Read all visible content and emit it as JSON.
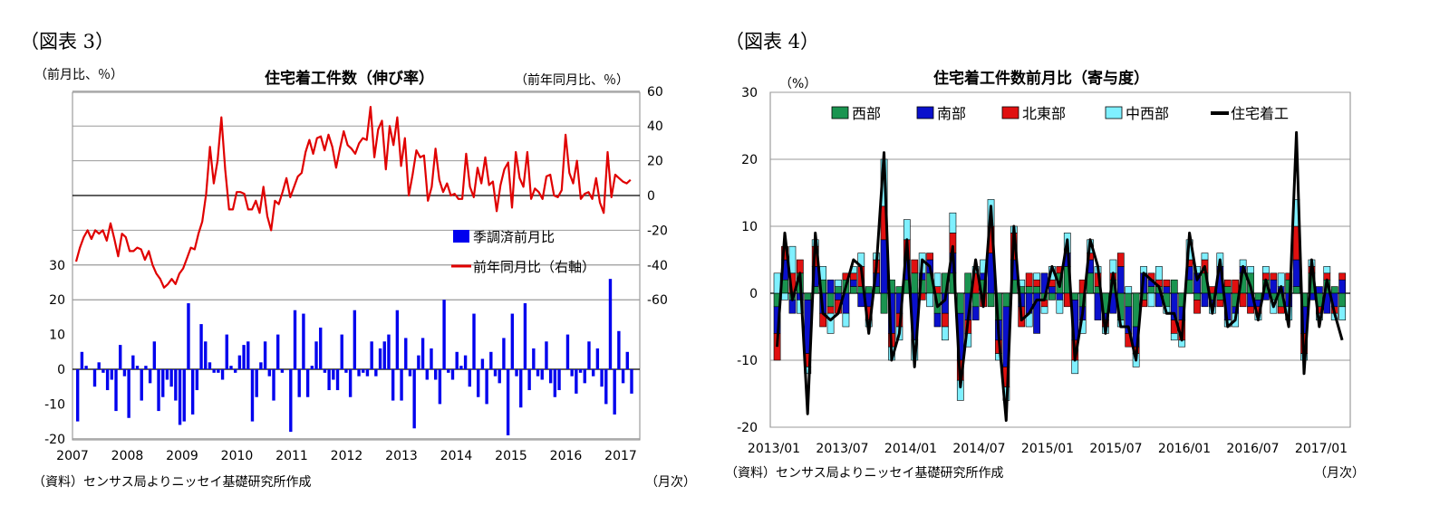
{
  "figures": [
    {
      "label": "（図表 3）",
      "title": "住宅着工件数（伸び率）",
      "left_unit": "（前月比、％）",
      "right_unit": "（前年同月比、％）",
      "source": "（資料）センサス局よりニッセイ基礎研究所作成",
      "x_unit": "（月次）"
    },
    {
      "label": "（図表 4）",
      "title": "住宅着工件数前月比（寄与度）",
      "unit": "（%）",
      "source": "（資料）センサス局よりニッセイ基礎研究所作成",
      "x_unit": "（月次）"
    }
  ],
  "chart_data": [
    {
      "type": "bar+line",
      "x_tick_labels": [
        "2007",
        "2008",
        "2009",
        "2010",
        "2011",
        "2012",
        "2013",
        "2014",
        "2015",
        "2016",
        "2017"
      ],
      "left_axis": {
        "ticks": [
          30,
          20,
          10,
          0,
          -10,
          -20
        ]
      },
      "right_axis": {
        "ticks": [
          60,
          40,
          20,
          0,
          -20,
          -40,
          -60
        ]
      },
      "legend": [
        "季調済前月比",
        "前年同月比（右軸）"
      ],
      "colors": {
        "bar": "#0000ee",
        "line": "#e00000"
      },
      "series": [
        {
          "name": "季調済前月比",
          "axis": "left",
          "values": [
            -15,
            5,
            1,
            0,
            -5,
            2,
            -1,
            -6,
            -3,
            -12,
            7,
            -2,
            -14,
            4,
            1,
            -9,
            1,
            -4,
            8,
            -12,
            -8,
            -3,
            -5,
            -9,
            -16,
            -15,
            19,
            -13,
            -6,
            13,
            8,
            2,
            -1,
            -1,
            -3,
            10,
            1,
            -1,
            4,
            7,
            8,
            -15,
            -8,
            2,
            8,
            -2,
            -9,
            10,
            -1,
            0,
            -18,
            17,
            -8,
            16,
            -8,
            1,
            8,
            12,
            -1,
            -6,
            -3,
            -6,
            10,
            -1,
            -8,
            17,
            -2,
            -1,
            -2,
            8,
            -2,
            6,
            8,
            10,
            -9,
            17,
            -9,
            9,
            -2,
            -17,
            4,
            9,
            -3,
            6,
            -3,
            -10,
            20,
            -1,
            -3,
            5,
            1,
            4,
            -5,
            16,
            -8,
            3,
            -10,
            5,
            -2,
            -4,
            9,
            -19,
            16,
            -2,
            -11,
            19,
            -6,
            6,
            -2,
            -3,
            8,
            -4,
            -8,
            -6,
            0,
            10,
            -2,
            -7,
            -1,
            -4,
            8,
            -2,
            6,
            -5,
            -10,
            26,
            -13,
            11,
            -4,
            5,
            -7
          ],
          "x_start": 2007.0,
          "x_step": 0.0833
        },
        {
          "name": "前年同月比（右軸）",
          "axis": "right",
          "values": [
            -38,
            -30,
            -24,
            -20,
            -25,
            -20,
            -22,
            -20,
            -26,
            -16,
            -25,
            -35,
            -22,
            -24,
            -32,
            -32,
            -30,
            -31,
            -37,
            -32,
            -40,
            -45,
            -48,
            -53,
            -51,
            -48,
            -51,
            -45,
            -42,
            -36,
            -30,
            -31,
            -22,
            -15,
            1,
            28,
            7,
            20,
            45,
            15,
            -8,
            -8,
            2,
            2,
            1,
            -8,
            -8,
            -3,
            -10,
            5,
            -12,
            -20,
            -3,
            -5,
            2,
            10,
            -1,
            5,
            11,
            13,
            25,
            32,
            24,
            33,
            34,
            26,
            35,
            28,
            16,
            27,
            37,
            29,
            27,
            24,
            30,
            33,
            32,
            51,
            22,
            38,
            43,
            15,
            40,
            29,
            45,
            17,
            33,
            0,
            12,
            26,
            22,
            23,
            -3,
            5,
            27,
            9,
            2,
            7,
            0,
            1,
            -2,
            -2,
            24,
            5,
            -1,
            16,
            7,
            22,
            6,
            8,
            -9,
            6,
            15,
            19,
            -7,
            25,
            10,
            5,
            25,
            -2,
            4,
            2,
            -2,
            11,
            12,
            0,
            -1,
            3,
            35,
            13,
            7,
            20,
            -2,
            1,
            2,
            -2,
            10,
            -4,
            -10,
            25,
            -1,
            12,
            10,
            8,
            7,
            9
          ]
        }
      ]
    },
    {
      "type": "stacked-bar+line",
      "x_tick_labels": [
        "2013/01",
        "2013/07",
        "2014/01",
        "2014/07",
        "2015/01",
        "2015/07",
        "2016/01",
        "2016/07",
        "2017/01"
      ],
      "y_ticks": [
        30,
        20,
        10,
        0,
        -10,
        -20
      ],
      "legend": [
        "西部",
        "南部",
        "北東部",
        "中西部",
        "住宅着工"
      ],
      "colors": {
        "西部": "#1a9450",
        "南部": "#0a10cc",
        "北東部": "#e01010",
        "中西部": "#7ff0ff",
        "住宅着工": "#000000"
      },
      "series": [
        {
          "name": "西部",
          "values": [
            -2,
            2,
            -1,
            3,
            -1,
            1,
            2,
            -2,
            1,
            2,
            1,
            1,
            1,
            1,
            -3,
            2,
            1,
            2,
            3,
            2,
            3,
            -3,
            3,
            3,
            -3,
            3,
            -2,
            2,
            -2,
            -4,
            -2,
            2,
            1,
            1,
            1,
            -1,
            -1,
            3,
            4,
            -1,
            -2,
            3,
            1,
            -3,
            2,
            -4,
            -2,
            -5,
            -1,
            1,
            1,
            -2,
            2,
            -2,
            2,
            -1,
            3,
            -1,
            -1,
            1,
            -2,
            3,
            3,
            -1,
            2,
            -1,
            -2,
            2,
            1,
            -2,
            3,
            -2,
            2,
            1,
            -2
          ]
        },
        {
          "name": "南部",
          "values": [
            -4,
            3,
            -2,
            -1,
            -8,
            3,
            -3,
            2,
            -1,
            -3,
            1,
            -2,
            -2,
            2,
            8,
            -6,
            -3,
            3,
            -7,
            1,
            2,
            -2,
            -3,
            3,
            -7,
            -4,
            -2,
            1,
            6,
            -3,
            -9,
            3,
            -2,
            -3,
            -6,
            3,
            1,
            -1,
            2,
            -6,
            -2,
            2,
            -4,
            -1,
            -3,
            4,
            -4,
            -3,
            3,
            1,
            -2,
            1,
            -4,
            -2,
            2,
            3,
            -2,
            -1,
            4,
            -4,
            -1,
            1,
            -2,
            -1,
            -1,
            2,
            1,
            -2,
            4,
            -4,
            -1,
            1,
            -3,
            -2,
            2
          ]
        },
        {
          "name": "北東部",
          "values": [
            -4,
            2,
            3,
            2,
            -2,
            3,
            -2,
            -1,
            -2,
            1,
            1,
            3,
            -2,
            2,
            5,
            -2,
            -2,
            3,
            2,
            -1,
            1,
            1,
            -2,
            3,
            -3,
            -2,
            3,
            -2,
            4,
            -2,
            -3,
            4,
            -3,
            2,
            1,
            -1,
            1,
            1,
            -2,
            -3,
            2,
            1,
            2,
            -1,
            1,
            2,
            -2,
            -1,
            -1,
            1,
            1,
            1,
            -2,
            -3,
            1,
            -2,
            2,
            1,
            -1,
            1,
            2,
            -2,
            -1,
            -1,
            1,
            1,
            -1,
            1,
            5,
            -3,
            1,
            -1,
            1,
            -1,
            1
          ]
        },
        {
          "name": "中西部",
          "values": [
            3,
            -1,
            4,
            -2,
            -1,
            1,
            2,
            -3,
            1,
            -2,
            1,
            2,
            -1,
            1,
            7,
            -2,
            -2,
            3,
            -3,
            3,
            -2,
            2,
            -2,
            3,
            -3,
            -2,
            1,
            2,
            4,
            -1,
            -2,
            1,
            1,
            -2,
            1,
            -1,
            2,
            -2,
            3,
            -2,
            -2,
            2,
            1,
            -1,
            2,
            -1,
            1,
            -2,
            1,
            -2,
            2,
            -1,
            -1,
            -1,
            3,
            1,
            1,
            -1,
            2,
            -1,
            -2,
            1,
            1,
            -1,
            1,
            -2,
            2,
            -2,
            4,
            -1,
            1,
            -1,
            1,
            -1,
            -2
          ]
        },
        {
          "name": "住宅着工",
          "values": [
            -8,
            9,
            -1,
            3,
            -18,
            9,
            -3,
            -4,
            -3,
            1,
            5,
            4,
            -6,
            4,
            21,
            -10,
            -6,
            8,
            -11,
            5,
            4,
            -2,
            -1,
            7,
            -14,
            -4,
            5,
            -2,
            13,
            -6,
            -19,
            10,
            -4,
            -3,
            -1,
            -1,
            4,
            1,
            8,
            -10,
            -3,
            8,
            4,
            -6,
            3,
            -5,
            -5,
            -10,
            3,
            2,
            1,
            -3,
            -3,
            -7,
            9,
            2,
            4,
            -3,
            5,
            -5,
            -4,
            4,
            1,
            -4,
            2,
            -2,
            1,
            -5,
            24,
            -12,
            5,
            -5,
            2,
            -3,
            -7
          ]
        }
      ]
    }
  ]
}
